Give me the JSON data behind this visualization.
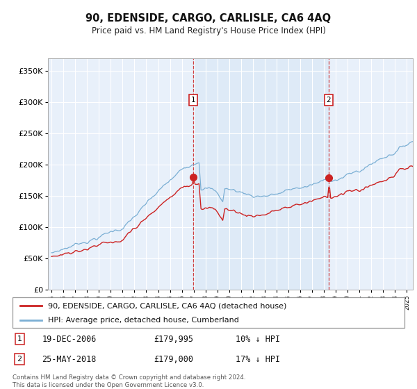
{
  "title": "90, EDENSIDE, CARGO, CARLISLE, CA6 4AQ",
  "subtitle": "Price paid vs. HM Land Registry's House Price Index (HPI)",
  "legend_line1": "90, EDENSIDE, CARGO, CARLISLE, CA6 4AQ (detached house)",
  "legend_line2": "HPI: Average price, detached house, Cumberland",
  "transaction1_date": "19-DEC-2006",
  "transaction1_price": "£179,995",
  "transaction1_hpi": "10% ↓ HPI",
  "transaction1_year": 2006.97,
  "transaction1_value": 179995,
  "transaction2_date": "25-MAY-2018",
  "transaction2_price": "£179,000",
  "transaction2_hpi": "17% ↓ HPI",
  "transaction2_year": 2018.4,
  "transaction2_value": 179000,
  "footer": "Contains HM Land Registry data © Crown copyright and database right 2024.\nThis data is licensed under the Open Government Licence v3.0.",
  "hpi_color": "#7bafd4",
  "price_color": "#cc2222",
  "shade_color": "#ddeaf7",
  "background_color": "#e8f0fa",
  "ylim": [
    0,
    370000
  ],
  "xlim_left": 1994.7,
  "xlim_right": 2025.5
}
